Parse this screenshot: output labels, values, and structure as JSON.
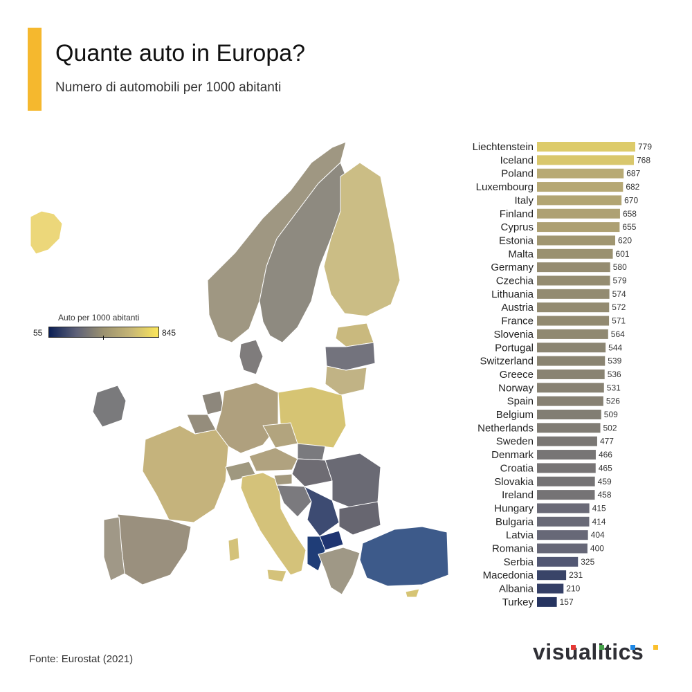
{
  "header": {
    "title": "Quante auto in Europa?",
    "subtitle": "Numero di automobili per 1000 abitanti"
  },
  "legend": {
    "title": "Auto per 1000 abitanti",
    "min": "55",
    "max": "845"
  },
  "footer": {
    "source": "Fonte: Eurostat (2021)",
    "logo": "visualitics"
  },
  "colors": {
    "accent": "#f5b82e",
    "scale_low": "#0b1f55",
    "scale_mid": "#9c9270",
    "scale_high": "#fbe65a",
    "logo_dots": [
      "#e53935",
      "#43a047",
      "#1e88e5",
      "#fbc02d"
    ]
  },
  "chart_data": {
    "type": "bar",
    "orientation": "horizontal",
    "title": "Quante auto in Europa?",
    "subtitle": "Numero di automobili per 1000 abitanti",
    "categories": [
      "Liechtenstein",
      "Iceland",
      "Poland",
      "Luxembourg",
      "Italy",
      "Finland",
      "Cyprus",
      "Estonia",
      "Malta",
      "Germany",
      "Czechia",
      "Lithuania",
      "Austria",
      "France",
      "Slovenia",
      "Portugal",
      "Switzerland",
      "Greece",
      "Norway",
      "Spain",
      "Belgium",
      "Netherlands",
      "Sweden",
      "Denmark",
      "Croatia",
      "Slovakia",
      "Ireland",
      "Hungary",
      "Bulgaria",
      "Latvia",
      "Romania",
      "Serbia",
      "Macedonia",
      "Albania",
      "Turkey"
    ],
    "values": [
      779,
      768,
      687,
      682,
      670,
      658,
      655,
      620,
      601,
      580,
      579,
      574,
      572,
      571,
      564,
      544,
      539,
      536,
      531,
      526,
      509,
      502,
      477,
      466,
      465,
      459,
      458,
      415,
      414,
      404,
      400,
      325,
      231,
      210,
      157
    ],
    "color_scale": {
      "min": 55,
      "max": 845
    }
  }
}
